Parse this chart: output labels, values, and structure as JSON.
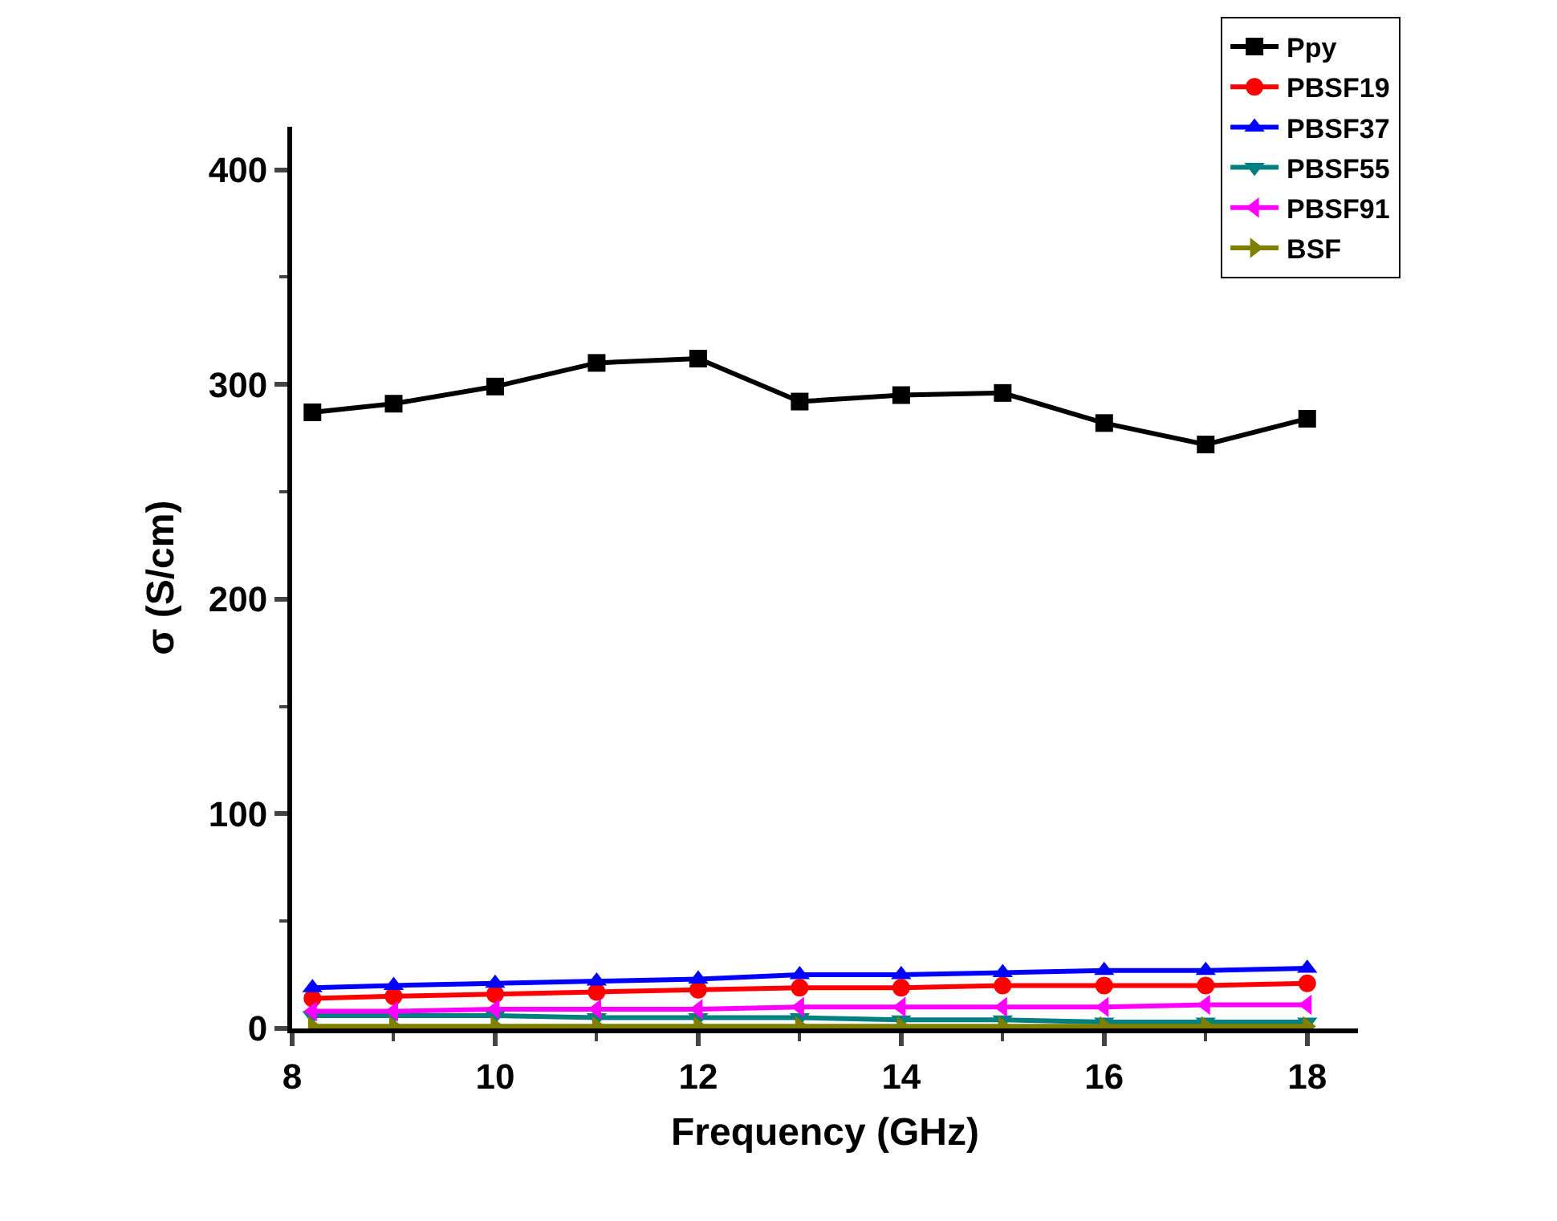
{
  "chart_data": {
    "type": "line",
    "xlabel": "Frequency (GHz)",
    "ylabel": "σ (S/cm)",
    "x": [
      8.2,
      9,
      10,
      11,
      12,
      13,
      14,
      15,
      16,
      17,
      18
    ],
    "xlim": [
      8,
      18.5
    ],
    "xticks": [
      8,
      10,
      12,
      14,
      16,
      18
    ],
    "ylim": [
      0,
      420
    ],
    "yticks": [
      0,
      100,
      200,
      300,
      400
    ],
    "legend": "top right",
    "line_style": "solid",
    "series": [
      {
        "name": "Ppy",
        "color": "#000000",
        "marker": "square",
        "values": [
          287,
          291,
          299,
          310,
          312,
          292,
          295,
          296,
          282,
          272,
          284
        ]
      },
      {
        "name": "PBSF19",
        "color": "#ff0000",
        "marker": "circle",
        "values": [
          14,
          15,
          16,
          17,
          18,
          19,
          19,
          20,
          20,
          20,
          21
        ]
      },
      {
        "name": "PBSF37",
        "color": "#0000ff",
        "marker": "triangle-up",
        "values": [
          19,
          20,
          21,
          22,
          23,
          25,
          25,
          26,
          27,
          27,
          28
        ]
      },
      {
        "name": "PBSF55",
        "color": "#008080",
        "marker": "triangle-down",
        "values": [
          6,
          6,
          6,
          5,
          5,
          5,
          4,
          4,
          3,
          3,
          3
        ]
      },
      {
        "name": "PBSF91",
        "color": "#ff00ff",
        "marker": "triangle-left",
        "values": [
          8,
          8,
          9,
          9,
          9,
          10,
          10,
          10,
          10,
          11,
          11
        ]
      },
      {
        "name": "BSF",
        "color": "#808000",
        "marker": "triangle-right",
        "values": [
          1,
          1,
          1,
          1,
          1,
          1,
          1,
          1,
          1,
          1,
          1
        ]
      }
    ]
  }
}
